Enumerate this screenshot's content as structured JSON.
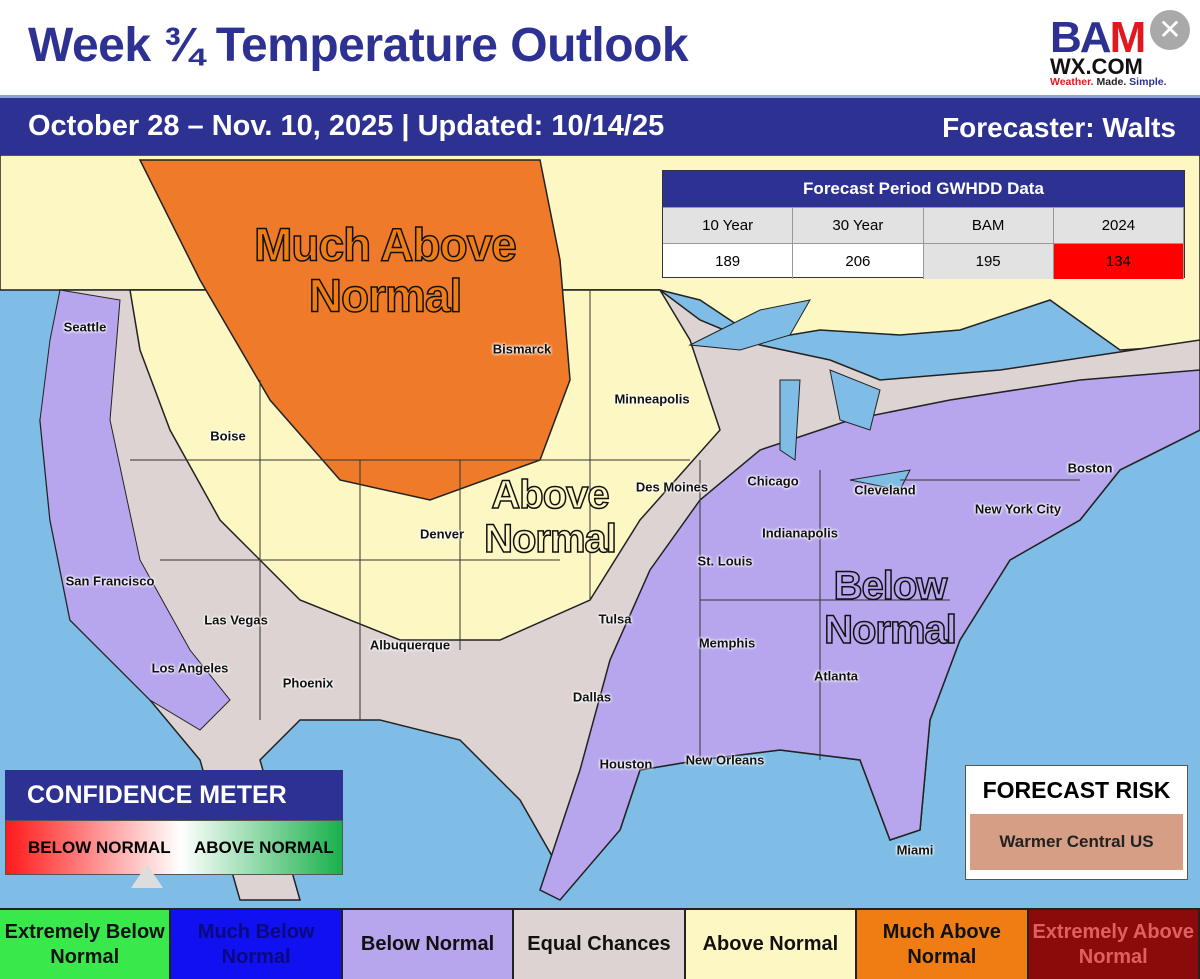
{
  "header": {
    "title": "Week ¾ Temperature Outlook",
    "subtitle": "October 28 – Nov. 10, 2025 | Updated: 10/14/25",
    "forecaster": "Forecaster: Walts"
  },
  "logo": {
    "text1": "BAM",
    "text2": "WX.COM",
    "tag1": "Weather.",
    "tag2": " Made.",
    "tag3": " Simple."
  },
  "close_icon": "close-icon",
  "map": {
    "regions": [
      {
        "label": "Much Above Normal",
        "color": "#ee7a2a"
      },
      {
        "label": "Above Normal",
        "color": "#fdf7c3"
      },
      {
        "label": "Equal Chances",
        "color": "#ddd3d3"
      },
      {
        "label": "Below Normal",
        "color": "#b7a6ee"
      }
    ],
    "region_text": {
      "much_above_1": "Much Above",
      "much_above_2": "Normal",
      "above_1": "Above",
      "above_2": "Normal",
      "below_1": "Below",
      "below_2": "Normal"
    },
    "cities": [
      "Seattle",
      "Boise",
      "San Francisco",
      "Las Vegas",
      "Los Angeles",
      "Phoenix",
      "Albuquerque",
      "Denver",
      "Bismarck",
      "Minneapolis",
      "Des Moines",
      "Tulsa",
      "Dallas",
      "Houston",
      "New Orleans",
      "Memphis",
      "St. Louis",
      "Chicago",
      "Indianapolis",
      "Atlanta",
      "Miami",
      "Cleveland",
      "New York City",
      "Boston"
    ]
  },
  "gwhdd": {
    "title": "Forecast Period GWHDD Data",
    "headers": [
      "10 Year",
      "30 Year",
      "BAM",
      "2024"
    ],
    "values": [
      "189",
      "206",
      "195",
      "134"
    ],
    "highlight_color": "#ff0000"
  },
  "confidence": {
    "title": "CONFIDENCE METER",
    "left": "BELOW NORMAL",
    "right": "ABOVE NORMAL",
    "pointer_fraction": 0.42
  },
  "risk": {
    "title": "FORECAST RISK",
    "value": "Warmer Central US"
  },
  "legend": [
    {
      "label": "Extremely Below Normal",
      "color": "#39e84a",
      "text": "#111"
    },
    {
      "label": "Much Below Normal",
      "color": "#1010f0",
      "text": "#0a0a80"
    },
    {
      "label": "Below Normal",
      "color": "#b7a6ee",
      "text": "#111"
    },
    {
      "label": "Equal Chances",
      "color": "#ddd3d3",
      "text": "#111"
    },
    {
      "label": "Above Normal",
      "color": "#fdf7c3",
      "text": "#111"
    },
    {
      "label": "Much Above Normal",
      "color": "#f07d14",
      "text": "#111"
    },
    {
      "label": "Extremely Above Normal",
      "color": "#8b0a0a",
      "text": "#e06060"
    }
  ]
}
